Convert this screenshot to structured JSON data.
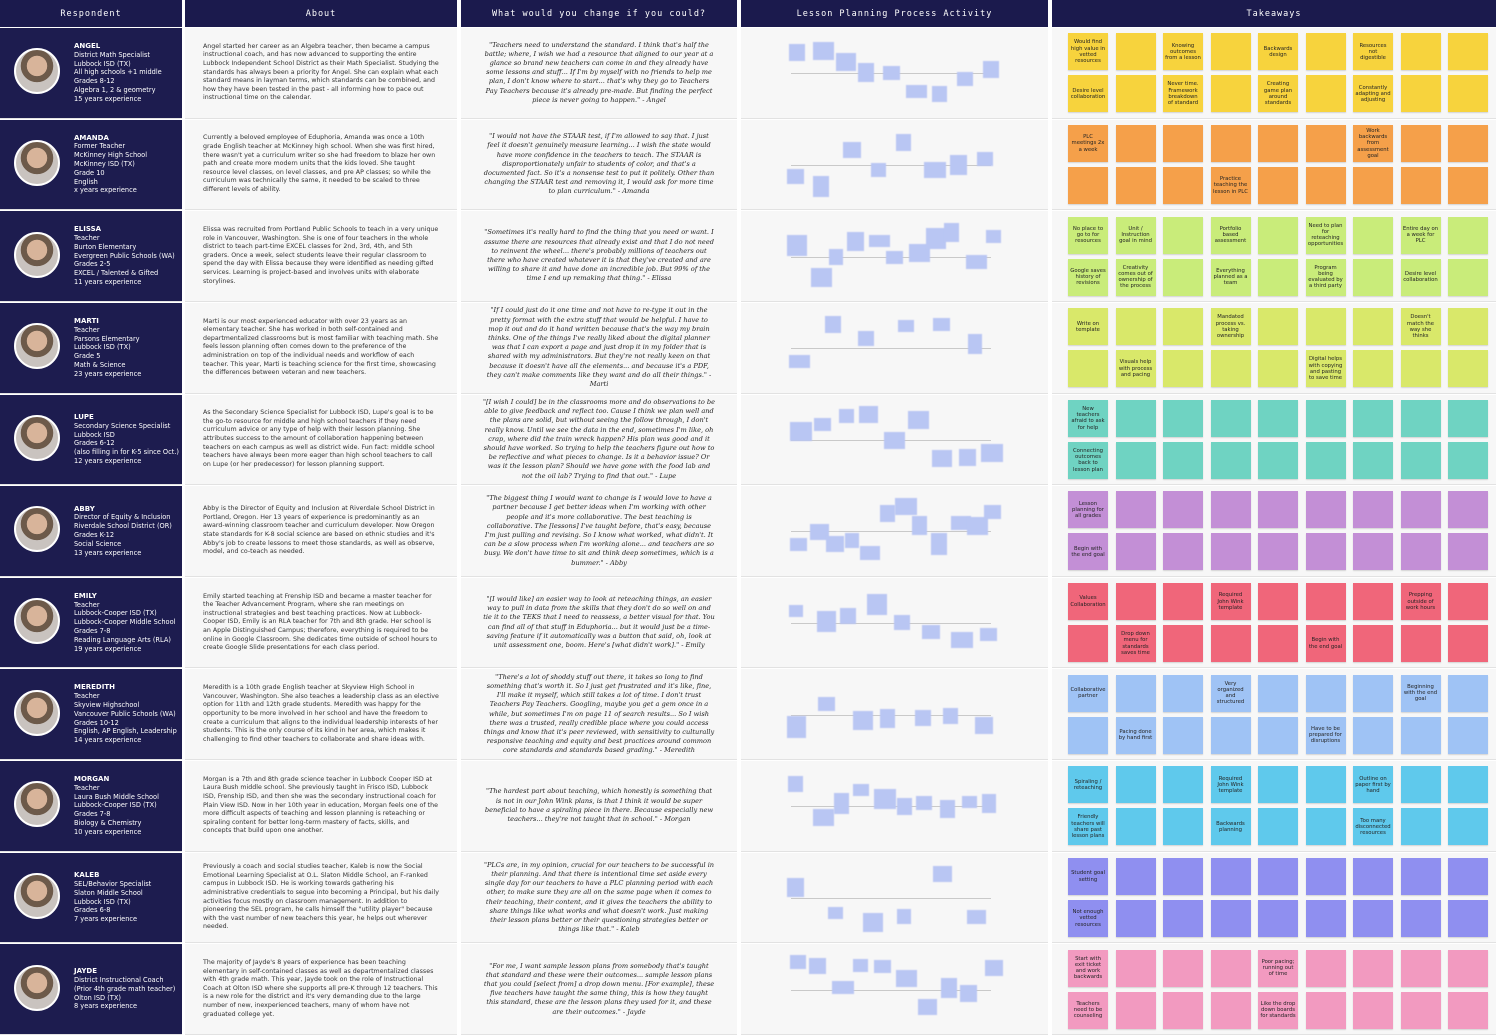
{
  "header": {
    "columns": [
      "Respondent",
      "About",
      "What would you change if you could?",
      "Lesson Planning Process Activity",
      "Takeaways"
    ]
  },
  "respondents": [
    {
      "name": "ANGEL",
      "details": [
        "District Math Specialist",
        "Lubbock ISD (TX)",
        "All high schools +1 middle",
        "Grades 8-12",
        "Algebra 1, 2 & geometry",
        "15 years experience"
      ],
      "about": "Angel started her career as an Algebra teacher, then became a campus instructional coach, and has now advanced to supporting the entire Lubbock Independent School District as their Math Specialist. Studying the standards has always been a priority for Angel. She can explain what each standard means in layman terms, which standards can be combined, and how they have been tested in the past - all informing how to pace out instructional time on the calendar.",
      "quote": "\"Teachers need to understand the standard. I think that's half the battle; where, I wish we had a resource that aligned to our year at a glance so brand new teachers can come in and they already have some lessons and stuff... If I'm by myself with no friends to help me plan, I don't know where to start... that's why they go to Teachers Pay Teachers because it's already pre-made. But finding the perfect piece is never going to happen.\" - Angel",
      "color": "#f7d33d",
      "takeaways": [
        "Would find high value in vetted resources",
        "Knowing outcomes from a lesson",
        "Backwards design",
        "Resources not digestible",
        "Desire level collaboration",
        "Never time. Framework breakdown of standard",
        "Creating game plan around standards",
        "Constantly adapting and adjusting"
      ]
    },
    {
      "name": "AMANDA",
      "details": [
        "Former Teacher",
        "McKinney High School",
        "McKinney ISD (TX)",
        "Grade 10",
        "English",
        "x years experience"
      ],
      "about": "Currently a beloved employee of Eduphoria, Amanda was once a 10th grade English teacher at McKinney high school. When she was first hired, there wasn't yet a curriculum writer so she had freedom to blaze her own path and create more modern units that the kids loved. She taught resource level classes, on level classes, and pre AP classes; so while the curriculum was technically the same, it needed to be scaled to three different levels of ability.",
      "quote": "\"I would not have the STAAR test, if I'm allowed to say that. I just feel it doesn't genuinely measure learning... I wish the state would have more confidence in the teachers to teach. The STAAR is disproportionately unfair to students of color, and that's a documented fact. So it's a nonsense test to put it politely. Other than changing the STAAR test and removing it, I would ask for more time to plan curriculum.\" - Amanda",
      "color": "#f5a04a",
      "takeaways": [
        "PLC meetings 2x a week",
        "Work backwards from assessment goal",
        "Practice teaching the lesson in PLC"
      ]
    },
    {
      "name": "ELISSA",
      "details": [
        "Teacher",
        "Burton Elementary",
        "Evergreen Public Schools (WA)",
        "Grades 2-5",
        "EXCEL / Talented & Gifted",
        "11 years experience"
      ],
      "about": "Elissa was recruited from Portland Public Schools to teach in a very unique role in Vancouver, Washington. She is one of four teachers in the whole district to teach part-time EXCEL classes for 2nd, 3rd, 4th, and 5th graders. Once a week, select students leave their regular classroom to spend the day with Elissa because they were identified as needing gifted services. Learning is project-based and involves units with elaborate storylines.",
      "quote": "\"Sometimes it's really hard to find the thing that you need or want. I assume there are resources that already exist and that I do not need to reinvent the wheel... there's probably millions of teachers out there who have created whatever it is that they've created and are willing to share it and have done an incredible job. But 99% of the time I end up remaking that thing.\" - Elissa",
      "color": "#c9ec7a",
      "takeaways": [
        "No place to go to for resources",
        "Unit / Instruction goal in mind",
        "Portfolio based assessment",
        "Need to plan for reteaching opportunities",
        "Entire day on a week for PLC",
        "Google saves history of revisions",
        "Creativity comes out of ownership of the process",
        "Everything planned as a team",
        "Program being evaluated by a third party",
        "Desire level collaboration"
      ]
    },
    {
      "name": "MARTI",
      "details": [
        "Teacher",
        "Parsons Elementary",
        "Lubbock ISD (TX)",
        "Grade 5",
        "Math & Science",
        "23 years experience"
      ],
      "about": "Marti is our most experienced educator with over 23 years as an elementary teacher. She has worked in both self-contained and departmentalized classrooms but is most familiar with teaching math. She feels lesson planning often comes down to the preference of the administration on top of the individual needs and workflow of each teacher. This year, Marti is teaching science for the first time, showcasing the differences between veteran and new teachers.",
      "quote": "\"If I could just do it one time and not have to re-type it out in the pretty format with the extra stuff that would be helpful. I have to mop it out and do it hand written because that's the way my brain thinks. One of the things I've really liked about the digital planner was that I can export a page and just drop it in my folder that is shared with my administrators. But they're not really keen on that because it doesn't have all the elements... and because it's a PDF, they can't make comments like they want and do all their things.\" - Marti",
      "color": "#d9e86a",
      "takeaways": [
        "Write on template",
        "Mandated process vs. taking ownership",
        "Doesn't match the way she thinks",
        "Visuals help with process and pacing",
        "Digital helps with copying and pasting to save time"
      ]
    },
    {
      "name": "LUPE",
      "details": [
        "Secondary Science Specialist",
        "Lubbock ISD",
        "Grades 6-12",
        "(also filling in for K-5 since Oct.)",
        "12 years experience"
      ],
      "about": "As the Secondary Science Specialist for Lubbock ISD, Lupe's goal is to be the go-to resource for middle and high school teachers if they need curriculum advice or any type of help with their lesson planning. She attributes success to the amount of collaboration happening between teachers on each campus as well as district wide. Fun fact: middle school teachers have always been more eager than high school teachers to call on Lupe (or her predecessor) for lesson planning support.",
      "quote": "\"[I wish I could] be in the classrooms more and do observations to be able to give feedback and reflect too. Cause I think we plan well and the plans are solid, but without seeing the follow through, I don't really know. Until we see the data in the end, sometimes I'm like, oh crap, where did the train wreck happen? His plan was good and it should have worked. So trying to help the teachers figure out how to be reflective and what pieces to change. Is it a behavior issue? Or was it the lesson plan? Should we have gone with the food lab and not the oil lab? Trying to find that out.\" - Lupe",
      "color": "#6fd3c2",
      "takeaways": [
        "New teachers afraid to ask for help",
        "Connecting outcomes back to lesson plan"
      ]
    },
    {
      "name": "ABBY",
      "details": [
        "Director of Equity & Inclusion",
        "Riverdale School District (OR)",
        "Grades K-12",
        "Social Science",
        "13 years experience"
      ],
      "about": "Abby is the Director of Equity and Inclusion at Riverdale School District in Portland, Oregon. Her 13 years of experience is predominantly as an award-winning classroom teacher and curriculum developer. Now Oregon state standards for K-8 social science are based on ethnic studies and it's Abby's job to create lessons to meet those standards, as well as observe, model, and co-teach as needed.",
      "quote": "\"The biggest thing I would want to change is I would love to have a partner because I get better ideas when I'm working with other people and it's more collaborative. The best teaching is collaborative. The [lessons] I've taught before, that's easy, because I'm just pulling and revising. So I know what worked, what didn't. It can be a slow process when I'm working alone... and teachers are so busy. We don't have time to sit and think deep sometimes, which is a bummer.\" - Abby",
      "color": "#c38fd6",
      "takeaways": [
        "Lesson planning for all grades",
        "Begin with the end goal"
      ]
    },
    {
      "name": "EMILY",
      "details": [
        "Teacher",
        "Lubbock-Cooper ISD (TX)",
        "Lubbock-Cooper Middle School",
        "Grades 7-8",
        "Reading Language Arts (RLA)",
        "19 years experience"
      ],
      "about": "Emily started teaching at Frenship ISD and became a master teacher for the Teacher Advancement Program, where she ran meetings on instructional strategies and best teaching practices. Now at Lubbock-Cooper ISD, Emily is an RLA teacher for 7th and 8th grade. Her school is an Apple Distinguished Campus; therefore, everything is required to be online in Google Classroom. She dedicates time outside of school hours to create Google Slide presentations for each class period.",
      "quote": "\"[I would like] an easier way to look at reteaching things, an easier way to pull in data from the skills that they don't do so well on and tie it to the TEKS that I need to reassess, a better visual for that. You can find all of that stuff in Eduphoria... but it would just be a time-saving feature if it automatically was a button that said, oh, look at unit assessment one, boom. Here's [what didn't work].\" - Emily",
      "color": "#f0667a",
      "takeaways": [
        "Values Collaboration",
        "Required John Wink template",
        "Prepping outside of work hours",
        "Drop down menu for standards saves time",
        "Begin with the end goal"
      ]
    },
    {
      "name": "MEREDITH",
      "details": [
        "Teacher",
        "Skyview Highschool",
        "Vancouver Public Schools (WA)",
        "Grades 10-12",
        "English, AP English, Leadership",
        "14 years experience"
      ],
      "about": "Meredith is a 10th grade English teacher at Skyview High School in Vancouver, Washington. She also teaches a leadership class as an elective option for 11th and 12th grade students. Meredith was happy for the opportunity to be more involved in her school and have the freedom to create a curriculum that aligns to the individual leadership interests of her students. This is the only course of its kind in her area, which makes it challenging to find other teachers to collaborate and share ideas with.",
      "quote": "\"There's a lot of shoddy stuff out there, it takes so long to find something that's worth it. So I just get frustrated and it's like, fine, I'll make it myself, which still takes a lot of time. I don't trust Teachers Pay Teachers. Googling, maybe you get a gem once in a while, but sometimes I'm on page 11 of search results... So I wish there was a trusted, really credible place where you could access things and know that it's peer reviewed, with sensitivity to culturally responsive teaching and equity and best practices around common core standards and standards based grading.\" - Meredith",
      "color": "#9fc3f5",
      "takeaways": [
        "Collaborative partner",
        "Very organized and structured",
        "Beginning with the end goal",
        "Pacing done by hand first",
        "Have to be prepared for disruptions"
      ]
    },
    {
      "name": "MORGAN",
      "details": [
        "Teacher",
        "Laura Bush Middle School",
        "Lubbock-Cooper ISD (TX)",
        "Grades 7-8",
        "Biology & Chemistry",
        "10 years experience"
      ],
      "about": "Morgan is a 7th and 8th grade science teacher in Lubbock Cooper ISD at Laura Bush middle school. She previously taught in Frisco ISD, Lubbock ISD, Frenship ISD, and then she was the secondary instructional coach for Plain View ISD. Now in her 10th year in education, Morgan feels one of the more difficult aspects of teaching and lesson planning is reteaching or spiraling content for better long-term mastery of facts, skills, and concepts that build upon one another.",
      "quote": "\"The hardest part about teaching, which honestly is something that is not in our John Wink plans, is that I think it would be super beneficial to have a spiraling piece in there. Because especially new teachers... they're not taught that in school.\" - Morgan",
      "color": "#5fc9ec",
      "takeaways": [
        "Spiraling / reteaching",
        "Required John Wink template",
        "Outline on paper first by hand",
        "Friendly teachers will share past lesson plans",
        "Backwards planning",
        "Too many disconnected resources"
      ]
    },
    {
      "name": "KALEB",
      "details": [
        "SEL/Behavior Specialist",
        "Slaton Middle School",
        "Lubbock ISD (TX)",
        "Grades 6-8",
        "7 years experience"
      ],
      "about": "Previously a coach and social studies teacher, Kaleb is now the Social Emotional Learning Specialist at O.L. Slaton Middle School, an F-ranked campus in Lubbock ISD. He is working towards gathering his administrative credentials to segue into becoming a Principal, but his daily activities focus mostly on classroom management. In addition to pioneering the SEL program, he calls himself the \"utility player\" because with the vast number of new teachers this year, he helps out wherever needed.",
      "quote": "\"PLCs are, in my opinion, crucial for our teachers to be successful in their planning. And that there is intentional time set aside every single day for our teachers to have a PLC planning period with each other, to make sure they are all on the same page when it comes to their teaching, their content, and it gives the teachers the ability to share things like what works and what doesn't work. Just making their lesson plans better or their questioning strategies better or things like that.\" - Kaleb",
      "color": "#8f8ff0",
      "takeaways": [
        "Student goal setting",
        "Not enough vetted resources"
      ]
    },
    {
      "name": "JAYDE",
      "details": [
        "District Instructional Coach",
        "(Prior 4th grade math teacher)",
        "Olton ISD (TX)",
        "8 years experience"
      ],
      "about": "The majority of Jayde's 8 years of experience has been teaching elementary in self-contained classes as well as departmentalized classes with 4th grade math. This year, Jayde took on the role of Instructional Coach at Olton ISD where she supports all pre-K through 12 teachers. This is a new role for the district and it's very demanding due to the large number of new, inexperienced teachers, many of whom have not graduated college yet.",
      "quote": "\"For me, I want sample lesson plans from somebody that's taught that standard and these were their outcomes... sample lesson plans that you could [select from] a drop down menu. [For example], these five teachers have taught the same thing, this is how they taught this standard, these are the lesson plans they used for it, and these are their outcomes.\" - Jayde",
      "color": "#f29ac0",
      "takeaways": [
        "Start with exit ticket and work backwards",
        "Poor pacing; running out of time",
        "Teachers need to be counseling",
        "Like the drop down boards for standards"
      ]
    }
  ]
}
